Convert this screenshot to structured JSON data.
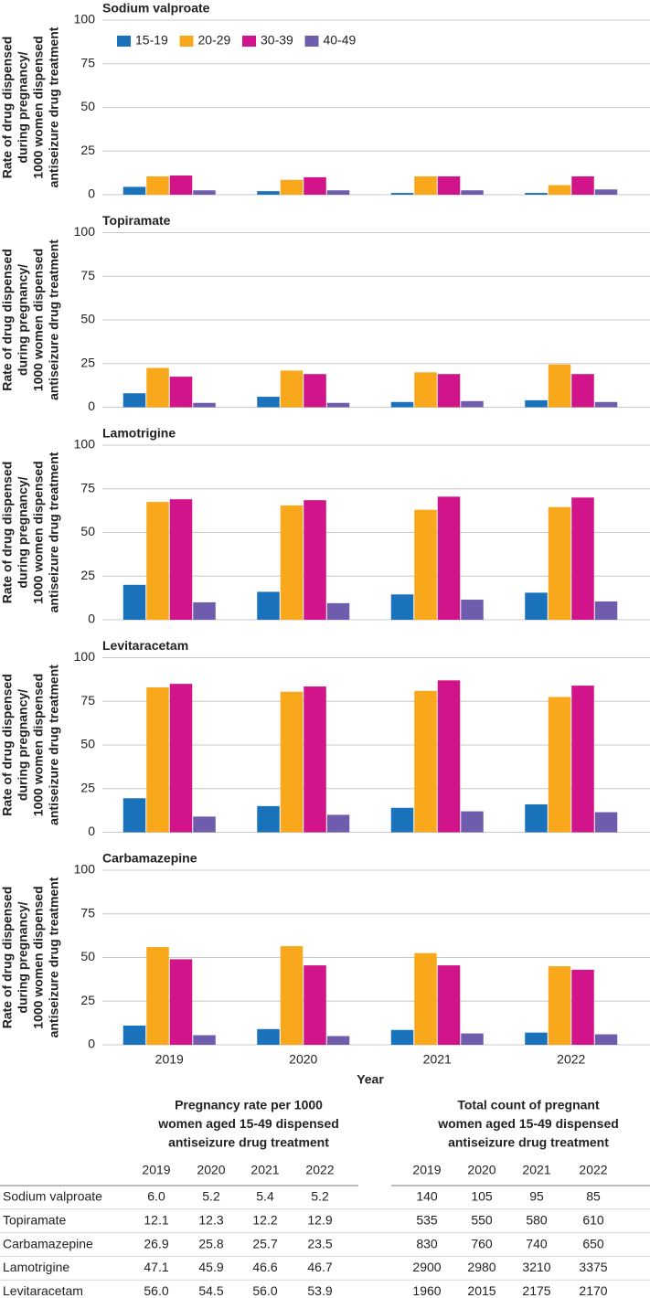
{
  "chart_data": [
    {
      "type": "bar",
      "title": "Sodium valproate",
      "ylabel": [
        "Rate of drug dispensed",
        "during pregnancy/",
        "1000 women dispensed",
        "antiseizure drug treatment"
      ],
      "ylim": [
        0,
        100
      ],
      "yticks": [
        0,
        25,
        50,
        75,
        100
      ],
      "grid": true,
      "legend": "top-left",
      "series": [
        {
          "name": "15-19",
          "color": "#1a73ba",
          "values": [
            4.5,
            2,
            1,
            1
          ]
        },
        {
          "name": "20-29",
          "color": "#f9a81b",
          "values": [
            10.5,
            8.5,
            10.5,
            5.5
          ]
        },
        {
          "name": "30-39",
          "color": "#d1148a",
          "values": [
            11,
            10,
            10.5,
            10.5
          ]
        },
        {
          "name": "40-49",
          "color": "#6f5cad",
          "values": [
            2.5,
            2.5,
            2.5,
            3
          ]
        }
      ]
    },
    {
      "type": "bar",
      "title": "Topiramate",
      "ylabel": [
        "Rate of drug dispensed",
        "during pregnancy/",
        "1000 women dispensed",
        "antiseizure drug treatment"
      ],
      "ylim": [
        0,
        100
      ],
      "yticks": [
        0,
        25,
        50,
        75,
        100
      ],
      "grid": true,
      "series": [
        {
          "color": "#1a73ba",
          "values": [
            8,
            6,
            3,
            4
          ]
        },
        {
          "color": "#f9a81b",
          "values": [
            22.5,
            21,
            20,
            24.5
          ]
        },
        {
          "color": "#d1148a",
          "values": [
            17.5,
            19,
            19,
            19
          ]
        },
        {
          "color": "#6f5cad",
          "values": [
            2.5,
            2.5,
            3.5,
            3
          ]
        }
      ]
    },
    {
      "type": "bar",
      "title": "Lamotrigine",
      "ylabel": [
        "Rate of drug dispensed",
        "during pregnancy/",
        "1000 women dispensed",
        "antiseizure drug treatment"
      ],
      "ylim": [
        0,
        100
      ],
      "yticks": [
        0,
        25,
        50,
        75,
        100
      ],
      "grid": true,
      "series": [
        {
          "color": "#1a73ba",
          "values": [
            20,
            16,
            14.5,
            15.5
          ]
        },
        {
          "color": "#f9a81b",
          "values": [
            67.5,
            65.5,
            63,
            64.5
          ]
        },
        {
          "color": "#d1148a",
          "values": [
            69,
            68.5,
            70.5,
            70
          ]
        },
        {
          "color": "#6f5cad",
          "values": [
            10,
            9.5,
            11.5,
            10.5
          ]
        }
      ]
    },
    {
      "type": "bar",
      "title": "Levitaracetam",
      "ylabel": [
        "Rate of drug dispensed",
        "during pregnancy/",
        "1000 women dispensed",
        "antiseizure drug treatment"
      ],
      "ylim": [
        0,
        100
      ],
      "yticks": [
        0,
        25,
        50,
        75,
        100
      ],
      "grid": true,
      "series": [
        {
          "color": "#1a73ba",
          "values": [
            19.5,
            15,
            14,
            16
          ]
        },
        {
          "color": "#f9a81b",
          "values": [
            83,
            80.5,
            81,
            77.5
          ]
        },
        {
          "color": "#d1148a",
          "values": [
            85,
            83.5,
            87,
            84
          ]
        },
        {
          "color": "#6f5cad",
          "values": [
            9,
            10,
            12,
            11.5
          ]
        }
      ]
    },
    {
      "type": "bar",
      "title": "Carbamazepine",
      "ylabel": [
        "Rate of drug dispensed",
        "during pregnancy/",
        "1000 women dispensed",
        "antiseizure drug treatment"
      ],
      "xlabel": "Year",
      "categories": [
        "2019",
        "2020",
        "2021",
        "2022"
      ],
      "ylim": [
        0,
        100
      ],
      "yticks": [
        0,
        25,
        50,
        75,
        100
      ],
      "grid": true,
      "series": [
        {
          "color": "#1a73ba",
          "values": [
            11,
            9,
            8.5,
            7
          ]
        },
        {
          "color": "#f9a81b",
          "values": [
            56,
            56.5,
            52.5,
            45
          ]
        },
        {
          "color": "#d1148a",
          "values": [
            49,
            45.5,
            45.5,
            43
          ]
        },
        {
          "color": "#6f5cad",
          "values": [
            5.5,
            5,
            6.5,
            6
          ]
        }
      ]
    }
  ],
  "table": {
    "groups": [
      {
        "title": [
          "Pregnancy rate per 1000",
          "women aged 15-49 dispensed",
          "antiseizure drug treatment"
        ],
        "columns": [
          "2019",
          "2020",
          "2021",
          "2022"
        ]
      },
      {
        "title": [
          "Total count of pregnant",
          "women aged 15-49 dispensed",
          "antiseizure drug treatment"
        ],
        "columns": [
          "2019",
          "2020",
          "2021",
          "2022"
        ]
      }
    ],
    "rows": [
      [
        "Sodium valproate",
        "6.0",
        "5.2",
        "5.4",
        "5.2",
        "140",
        "105",
        "95",
        "85"
      ],
      [
        "Topiramate",
        "12.1",
        "12.3",
        "12.2",
        "12.9",
        "535",
        "550",
        "580",
        "610"
      ],
      [
        "Carbamazepine",
        "26.9",
        "25.8",
        "25.7",
        "23.5",
        "830",
        "760",
        "740",
        "650"
      ],
      [
        "Lamotrigine",
        "47.1",
        "45.9",
        "46.6",
        "46.7",
        "2900",
        "2980",
        "3210",
        "3375"
      ],
      [
        "Levitaracetam",
        "56.0",
        "54.5",
        "56.0",
        "53.9",
        "1960",
        "2015",
        "2175",
        "2170"
      ]
    ]
  }
}
